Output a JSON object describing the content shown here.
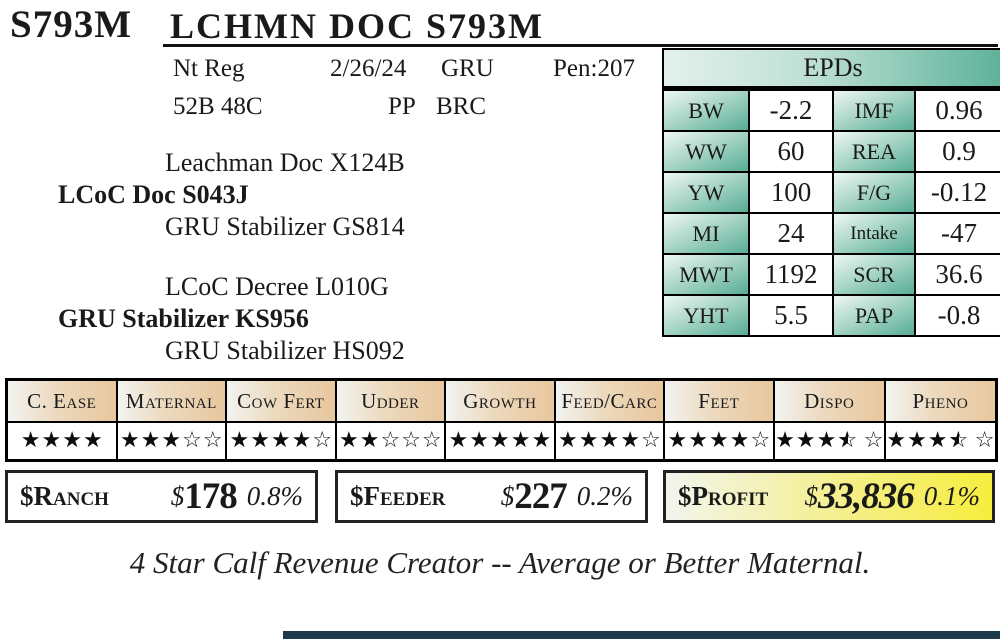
{
  "header": {
    "tag": "S793M",
    "name": "LCHMN DOC S793M"
  },
  "info": {
    "registration": "Nt Reg",
    "birth_date": "2/26/24",
    "herd": "GRU",
    "pen": "Pen:207",
    "tattoo": "52B 48C",
    "horn_status": "PP",
    "breed": "BRC"
  },
  "pedigree": {
    "sire_sire": "Leachman Doc X124B",
    "sire": "LCoC Doc S043J",
    "sire_dam": "GRU Stabilizer GS814",
    "dam_sire": "LCoC Decree L010G",
    "dam": "GRU Stabilizer KS956",
    "dam_dam": "GRU Stabilizer HS092"
  },
  "epds": {
    "title": "EPDs",
    "rows": [
      {
        "label1": "BW",
        "value1": "-2.2",
        "label2": "IMF",
        "value2": "0.96"
      },
      {
        "label1": "WW",
        "value1": "60",
        "label2": "REA",
        "value2": "0.9"
      },
      {
        "label1": "YW",
        "value1": "100",
        "label2": "F/G",
        "value2": "-0.12"
      },
      {
        "label1": "MI",
        "value1": "24",
        "label2": "Intake",
        "value2": "-47"
      },
      {
        "label1": "MWT",
        "value1": "1192",
        "label2": "SCR",
        "value2": "36.6"
      },
      {
        "label1": "YHT",
        "value1": "5.5",
        "label2": "PAP",
        "value2": "-0.8"
      }
    ]
  },
  "star_ratings": [
    {
      "label": "C. Ease",
      "filled": 4,
      "half": 0,
      "empty": 0
    },
    {
      "label": "Maternal",
      "filled": 3,
      "half": 0,
      "empty": 2
    },
    {
      "label": "Cow Fert",
      "filled": 4,
      "half": 0,
      "empty": 1
    },
    {
      "label": "Udder",
      "filled": 2,
      "half": 0,
      "empty": 3
    },
    {
      "label": "Growth",
      "filled": 5,
      "half": 0,
      "empty": 0
    },
    {
      "label": "Feed/Carc",
      "filled": 4,
      "half": 0,
      "empty": 1
    },
    {
      "label": "Feet",
      "filled": 4,
      "half": 0,
      "empty": 1
    },
    {
      "label": "Dispo",
      "filled": 3,
      "half": 1,
      "empty": 1
    },
    {
      "label": "Pheno",
      "filled": 3,
      "half": 1,
      "empty": 1
    }
  ],
  "indexes": {
    "ranch": {
      "label": "$Ranch",
      "currency": "$",
      "value": "178",
      "pct": "0.8%"
    },
    "feeder": {
      "label": "$Feeder",
      "currency": "$",
      "value": "227",
      "pct": "0.2%"
    },
    "profit": {
      "label": "$Profit",
      "currency": "$",
      "value": "33,836",
      "pct": "0.1%"
    }
  },
  "note": "4 Star Calf Revenue Creator -- Average or Better Maternal.",
  "icons": {
    "star_filled": "★",
    "star_half": "left-half-filled-star",
    "star_empty": "☆"
  },
  "colors": {
    "epd_teal": "#5db29a",
    "epd_teal_light": "#eef7f3",
    "star_header_tan": "#e8c79e",
    "profit_yellow": "#f6ee3d",
    "border_black": "#111111",
    "bottom_bar": "#1c3a49"
  }
}
